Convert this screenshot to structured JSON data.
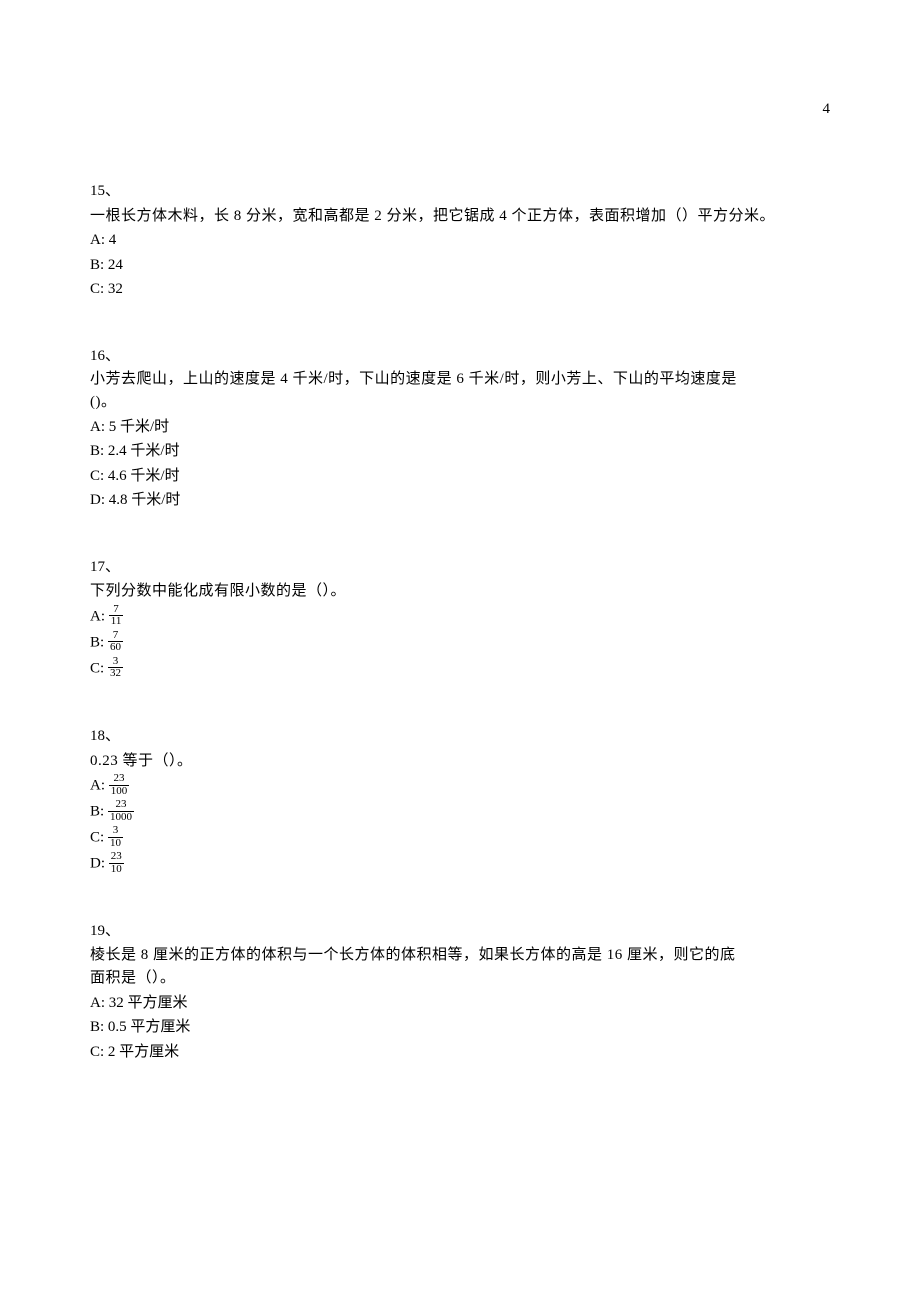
{
  "page_number": "4",
  "q15": {
    "num": "15、",
    "text": "一根长方体木料，长 8 分米，宽和高都是 2 分米，把它锯成 4 个正方体，表面积增加（）平方分米。",
    "A": "A: 4",
    "B": "B: 24",
    "C": "C: 32"
  },
  "q16": {
    "num": "16、",
    "text1": "小芳去爬山，上山的速度是 4 千米/时，下山的速度是 6 千米/时，则小芳上、下山的平均速度是",
    "text2": "()。",
    "A": "A: 5 千米/时",
    "B": "B: 2.4 千米/时",
    "C": "C: 4.6 千米/时",
    "D": "D: 4.8 千米/时"
  },
  "q17": {
    "num": "17、",
    "text": "下列分数中能化成有限小数的是（）。",
    "A_pre": "A: ",
    "A_num": "7",
    "A_den": "11",
    "B_pre": "B: ",
    "B_num": "7",
    "B_den": "60",
    "C_pre": "C: ",
    "C_num": "3",
    "C_den": "32"
  },
  "q18": {
    "num": "18、",
    "text": "0.23 等于（）。",
    "A_pre": "A: ",
    "A_num": "23",
    "A_den": "100",
    "B_pre": "B: ",
    "B_num": "23",
    "B_den": "1000",
    "C_pre": "C: ",
    "C_num": "3",
    "C_den": "10",
    "D_pre": "D: ",
    "D_num": "23",
    "D_den": "10"
  },
  "q19": {
    "num": "19、",
    "text1": "棱长是 8 厘米的正方体的体积与一个长方体的体积相等，如果长方体的高是 16 厘米，则它的底",
    "text2": "面积是（）。",
    "A": "A: 32 平方厘米",
    "B": "B: 0.5 平方厘米",
    "C": "C: 2 平方厘米"
  }
}
